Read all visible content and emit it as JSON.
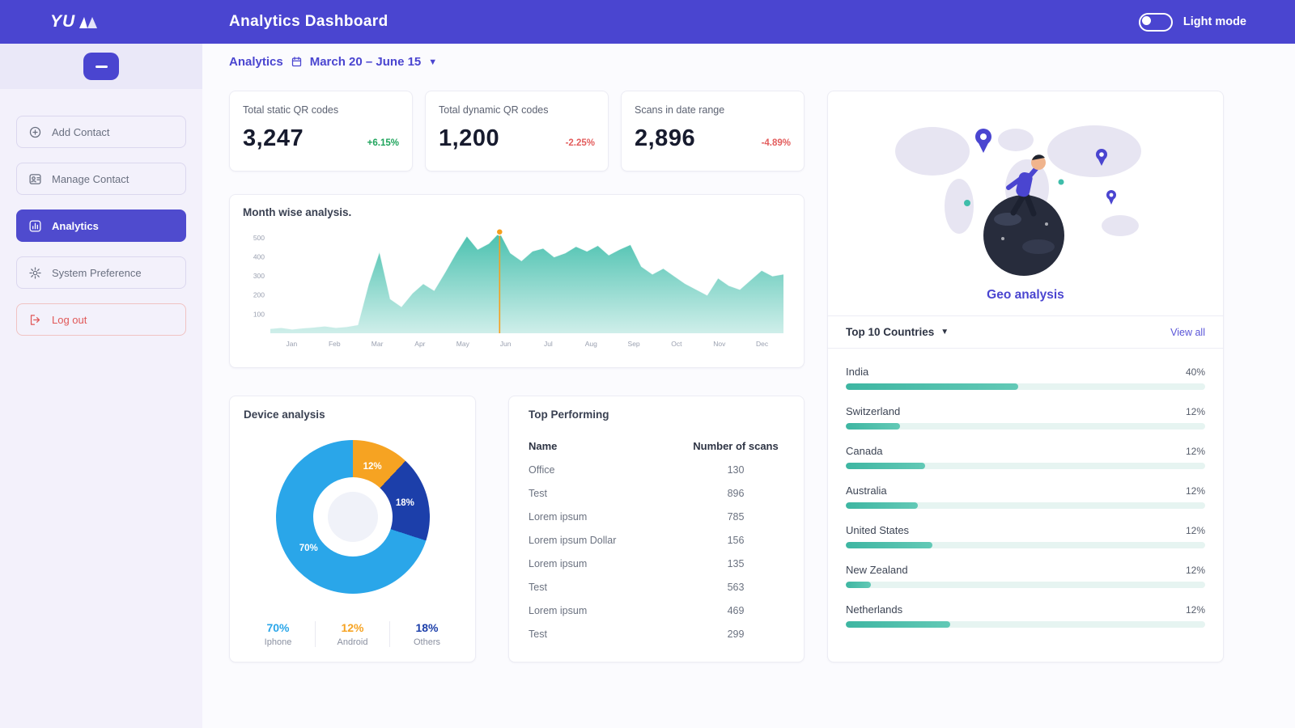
{
  "colors": {
    "accent": "#4a45d0",
    "teal": "#3fbdaa",
    "green_up": "#1fa45c",
    "red_down": "#e35d5d",
    "marker_orange": "#f59f1e"
  },
  "header": {
    "logo": "YU",
    "title": "Analytics Dashboard",
    "theme_label": "Light mode"
  },
  "sidebar": {
    "items": [
      {
        "label": "Add Contact",
        "icon": "add-contact-icon",
        "state": "default"
      },
      {
        "label": "Manage Contact",
        "icon": "manage-contact-icon",
        "state": "default"
      },
      {
        "label": "Analytics",
        "icon": "analytics-icon",
        "state": "active"
      },
      {
        "label": "System Preference",
        "icon": "settings-icon",
        "state": "default"
      },
      {
        "label": "Log out",
        "icon": "logout-icon",
        "state": "danger"
      }
    ]
  },
  "breadcrumb": {
    "section": "Analytics",
    "date_range": "March 20 – June 15"
  },
  "stats": [
    {
      "label": "Total static QR codes",
      "value": "3,247",
      "delta": "+6.15%"
    },
    {
      "label": "Total dynamic QR codes",
      "value": "1,200",
      "delta": "-2.25%"
    },
    {
      "label": "Scans in date range",
      "value": "2,896",
      "delta": "-4.89%"
    }
  ],
  "month_chart": {
    "type": "area",
    "title": "Month wise analysis.",
    "x_labels": [
      "Jan",
      "Feb",
      "Mar",
      "Apr",
      "May",
      "Jun",
      "Jul",
      "Aug",
      "Sep",
      "Oct",
      "Nov",
      "Dec"
    ],
    "y_ticks": [
      100,
      200,
      300,
      400,
      500
    ],
    "y_max": 550,
    "values": [
      25,
      30,
      22,
      28,
      32,
      38,
      30,
      35,
      45,
      260,
      430,
      180,
      140,
      210,
      260,
      225,
      320,
      420,
      510,
      440,
      470,
      530,
      420,
      380,
      430,
      445,
      400,
      420,
      455,
      430,
      460,
      410,
      440,
      465,
      350,
      310,
      340,
      300,
      260,
      230,
      200,
      290,
      250,
      230,
      280,
      330,
      300,
      310
    ],
    "marker_index": 21,
    "marker_color": "#f59f1e",
    "area_color": "#3fbdaa"
  },
  "device_chart": {
    "type": "donut",
    "title": "Device analysis",
    "slices": [
      {
        "label": "Iphone",
        "pct": 70,
        "color": "#2aa6e9"
      },
      {
        "label": "Android",
        "pct": 12,
        "color": "#f6a322"
      },
      {
        "label": "Others",
        "pct": 18,
        "color": "#1c3faa"
      }
    ]
  },
  "top_performing": {
    "title": "Top Performing",
    "columns": [
      "Name",
      "Number of scans"
    ],
    "rows": [
      [
        "Office",
        "130"
      ],
      [
        "Test",
        "896"
      ],
      [
        "Lorem ipsum",
        "785"
      ],
      [
        "Lorem ipsum Dollar",
        "156"
      ],
      [
        "Lorem ipsum",
        "135"
      ],
      [
        "Test",
        "563"
      ],
      [
        "Lorem ipsum",
        "469"
      ],
      [
        "Test",
        "299"
      ]
    ]
  },
  "geo": {
    "title": "Geo analysis",
    "list_title": "Top 10 Countries",
    "view_all": "View all",
    "countries": [
      {
        "name": "India",
        "pct": "40%",
        "bar": 48
      },
      {
        "name": "Switzerland",
        "pct": "12%",
        "bar": 15
      },
      {
        "name": "Canada",
        "pct": "12%",
        "bar": 22
      },
      {
        "name": "Australia",
        "pct": "12%",
        "bar": 20
      },
      {
        "name": "United States",
        "pct": "12%",
        "bar": 24
      },
      {
        "name": "New Zealand",
        "pct": "12%",
        "bar": 7
      },
      {
        "name": "Netherlands",
        "pct": "12%",
        "bar": 29
      }
    ]
  }
}
